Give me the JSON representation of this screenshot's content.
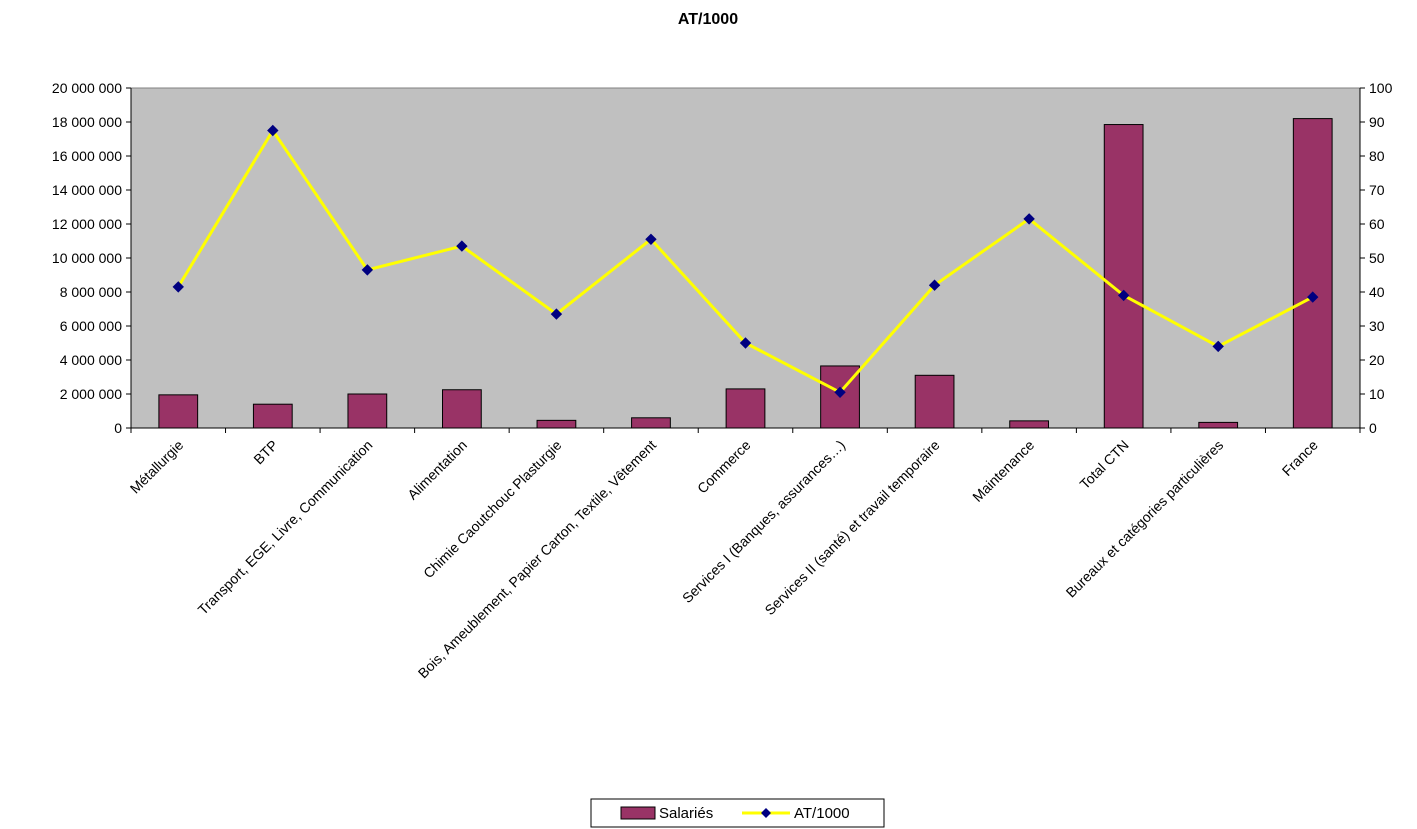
{
  "chart_data": {
    "type": "bar",
    "title": "AT/1000",
    "xlabel": "",
    "ylabel": "",
    "y2label": "",
    "categories": [
      "Métallurgie",
      "BTP",
      "Transport, EGE, Livre, Communication",
      "Alimentation",
      "Chimie Caoutchouc Plasturgie",
      "Bois, Ameublement, Papier Carton, Textile, Vêtement",
      "Commerce",
      "Services I (Banques, assurances…)",
      "Services II (santé) et travail temporaire",
      "Maintenance",
      "Total CTN",
      "Bureaux et catégories particulières",
      "France"
    ],
    "series": [
      {
        "name": "Salariés",
        "type": "bar",
        "axis": "left",
        "color": "#993366",
        "values": [
          1950000,
          1400000,
          2000000,
          2250000,
          450000,
          600000,
          2300000,
          3650000,
          3100000,
          420000,
          17850000,
          330000,
          18200000
        ]
      },
      {
        "name": "AT/1000",
        "type": "line",
        "axis": "right",
        "color": "#ffff00",
        "marker_color": "#000080",
        "values": [
          41.5,
          87.5,
          46.5,
          53.5,
          33.5,
          55.5,
          25,
          10.5,
          42,
          61.5,
          39,
          24,
          38.5
        ]
      }
    ],
    "y_left": {
      "min": 0,
      "max": 20000000,
      "ticks": [
        "0",
        "2 000 000",
        "4 000 000",
        "6 000 000",
        "8 000 000",
        "10 000 000",
        "12 000 000",
        "14 000 000",
        "16 000 000",
        "18 000 000",
        "20 000 000"
      ]
    },
    "y_right": {
      "min": 0,
      "max": 100,
      "ticks": [
        "0",
        "10",
        "20",
        "30",
        "40",
        "50",
        "60",
        "70",
        "80",
        "90",
        "100"
      ]
    },
    "plot_background": "#c0c0c0",
    "grid": false,
    "legend_position": "bottom-center"
  }
}
